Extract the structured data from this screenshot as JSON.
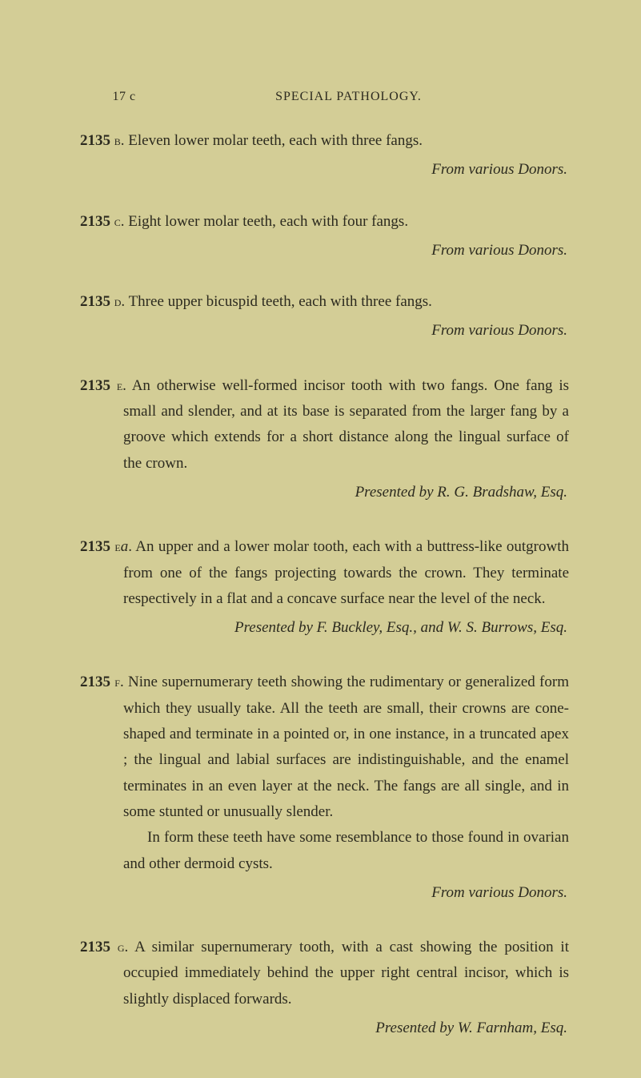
{
  "header": {
    "pagenum": "17 c",
    "title": "SPECIAL PATHOLOGY."
  },
  "entries": [
    {
      "num": "2135",
      "letter": "b",
      "text": ". Eleven lower molar teeth, each with three fangs.",
      "attrib": "From various Donors."
    },
    {
      "num": "2135",
      "letter": "c",
      "text": ". Eight lower molar teeth, each with four fangs.",
      "attrib": "From various Donors."
    },
    {
      "num": "2135",
      "letter": "d",
      "text": ". Three upper bicuspid teeth, each with three fangs.",
      "attrib": "From various Donors."
    },
    {
      "num": "2135",
      "letter": "e",
      "text": ". An otherwise well-formed incisor tooth with two fangs. One fang is small and slender, and at its base is separated from the larger fang by a groove which extends for a short distance along the lingual surface of the crown.",
      "attrib": "Presented by R. G. Bradshaw, Esq."
    },
    {
      "num": "2135",
      "letter": "e",
      "suffix": "a",
      "text": ". An upper and a lower molar tooth, each with a buttress-like outgrowth from one of the fangs projecting towards the crown. They terminate respectively in a flat and a concave surface near the level of the neck.",
      "attrib": "Presented by F. Buckley, Esq., and W. S. Burrows, Esq."
    },
    {
      "num": "2135",
      "letter": "f",
      "text": ". Nine supernumerary teeth showing the rudimentary or generalized form which they usually take. All the teeth are small, their crowns are cone-shaped and terminate in a pointed or, in one instance, in a truncated apex ; the lingual and labial surfaces are indistinguishable, and the enamel terminates in an even layer at the neck. The fangs are all single, and in some stunted or unusually slender.",
      "text2": "In form these teeth have some resemblance to those found in ovarian and other dermoid cysts.",
      "attrib": "From various Donors."
    },
    {
      "num": "2135",
      "letter": "g",
      "text": ". A similar supernumerary tooth, with a cast showing the position it occupied immediately behind the upper right central incisor, which is slightly displaced forwards.",
      "attrib": "Presented by W. Farnham, Esq."
    }
  ]
}
